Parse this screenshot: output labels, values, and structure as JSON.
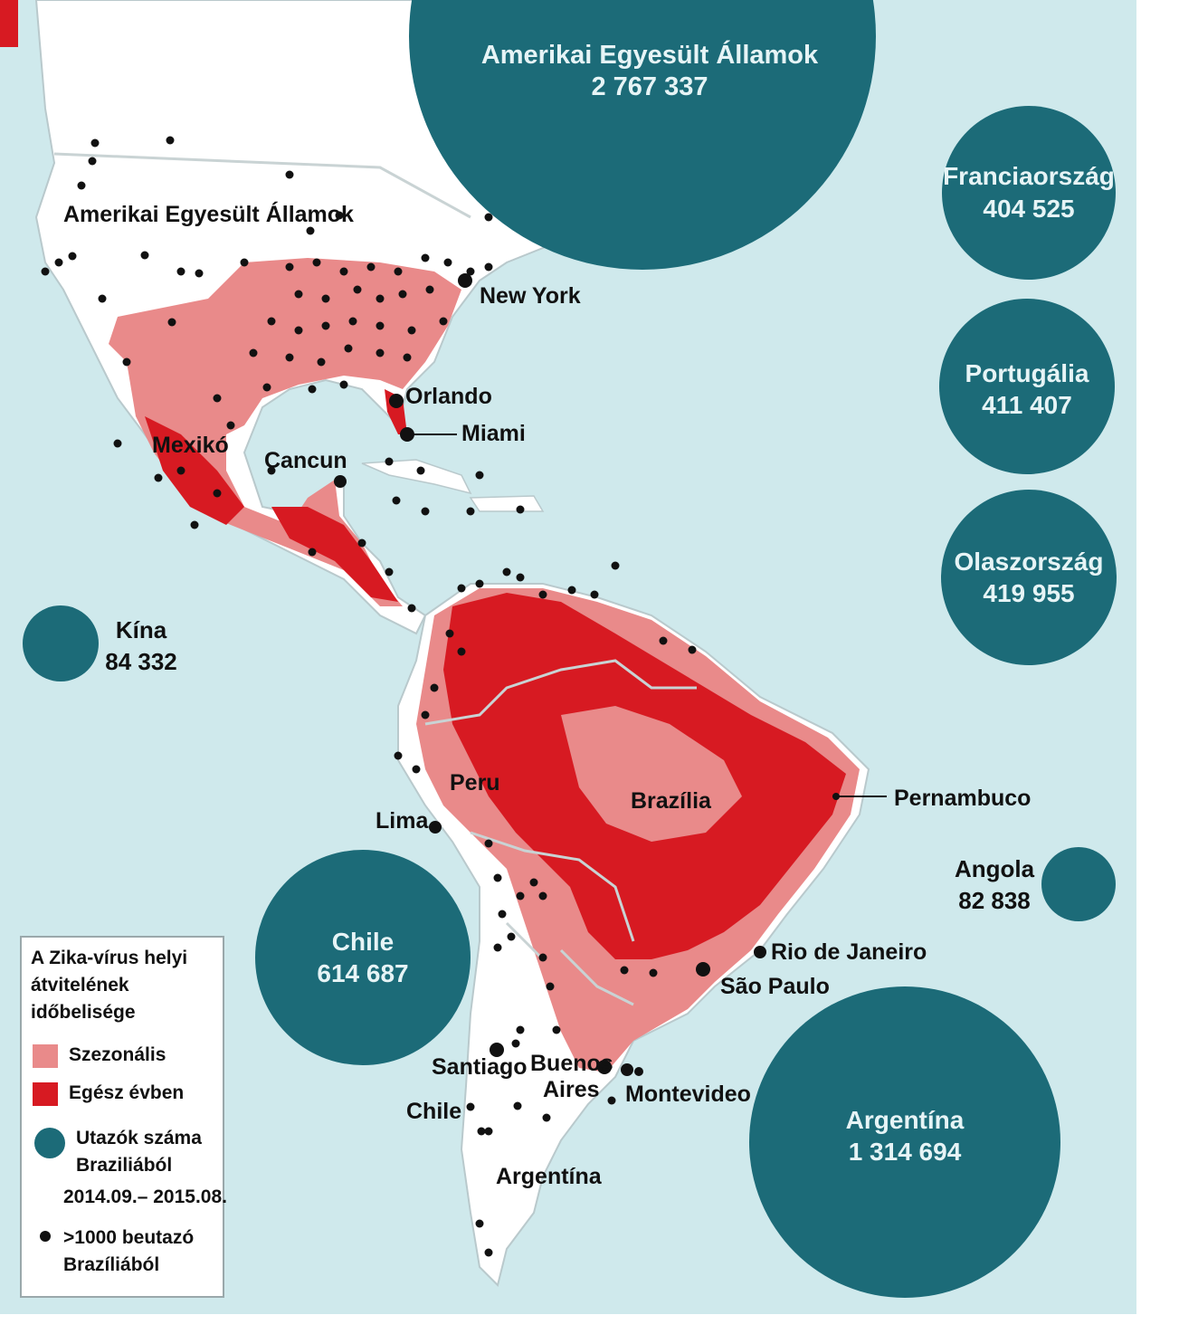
{
  "colors": {
    "ocean": "#cfe9ec",
    "land": "#ffffff",
    "seasonal": "#e98a8a",
    "year_round": "#d71a22",
    "bubble": "#1c6b78",
    "bubble_text": "#e6f4f6",
    "city_dot": "#111111",
    "border_line": "#b9c9cc"
  },
  "bubbles": [
    {
      "id": "usa",
      "name": "Amerikai Egyesült Államok",
      "value": "2 767 337"
    },
    {
      "id": "france",
      "name": "Franciaország",
      "value": "404 525"
    },
    {
      "id": "portugal",
      "name": "Portugália",
      "value": "411 407"
    },
    {
      "id": "italy",
      "name": "Olaszország",
      "value": "419 955"
    },
    {
      "id": "china",
      "name": "Kína",
      "value": "84 332"
    },
    {
      "id": "chile",
      "name": "Chile",
      "value": "614 687"
    },
    {
      "id": "argentina",
      "name": "Argentína",
      "value": "1 314 694"
    },
    {
      "id": "angola",
      "name": "Angola",
      "value": "82 838"
    }
  ],
  "places": {
    "usa": "Amerikai Egyesült Államok",
    "new_york": "New York",
    "orlando": "Orlando",
    "miami": "Miami",
    "mexico": "Mexikó",
    "cancun": "Cancun",
    "peru": "Peru",
    "lima": "Lima",
    "brazil": "Brazília",
    "pernambuco": "Pernambuco",
    "rio": "Rio de Janeiro",
    "sao_paulo": "São Paulo",
    "santiago": "Santiago",
    "buenos_aires_1": "Buenos",
    "buenos_aires_2": "Aires",
    "montevideo": "Montevideo",
    "chile": "Chile",
    "argentina": "Argentína"
  },
  "legend": {
    "title": "A Zika-vírus helyi átvitelének időbelisége",
    "seasonal": "Szezonális",
    "year_round": "Egész évben",
    "travelers_1": "Utazók száma",
    "travelers_2": "Braziliából",
    "travelers_3": "2014.09.– 2015.08.",
    "dots_1": ">1000 beutazó",
    "dots_2": "Brazíliából"
  }
}
